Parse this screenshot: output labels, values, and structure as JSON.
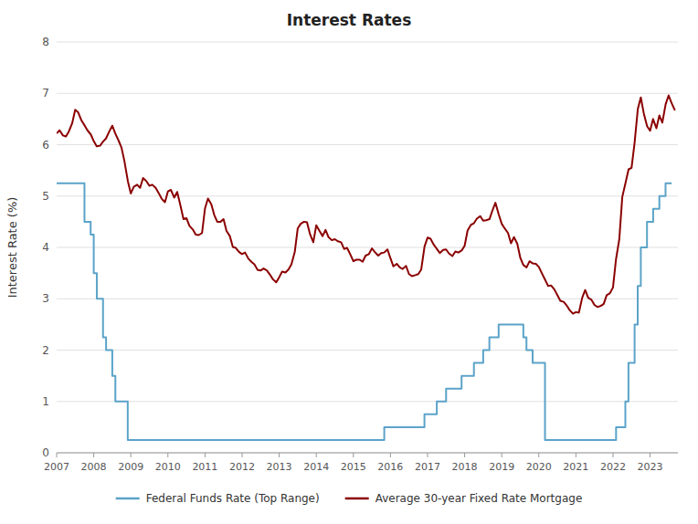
{
  "chart_data": {
    "type": "line",
    "title": "Interest Rates",
    "ylabel": "Interest Rate (%)",
    "xlim": [
      2007,
      2023.75
    ],
    "xticks": [
      2007,
      2008,
      2009,
      2010,
      2011,
      2012,
      2013,
      2014,
      2015,
      2016,
      2017,
      2018,
      2019,
      2020,
      2021,
      2022,
      2023
    ],
    "ylim": [
      0,
      8
    ],
    "yticks": [
      0,
      1,
      2,
      3,
      4,
      5,
      6,
      7,
      8
    ],
    "grid": true,
    "legend": "bottom",
    "series": [
      {
        "name": "Federal Funds Rate (Top Range)",
        "color": "#5ba3c9",
        "x": [
          2007.0,
          2007.75,
          2007.75,
          2007.917,
          2007.917,
          2008.0,
          2008.0,
          2008.083,
          2008.083,
          2008.25,
          2008.25,
          2008.333,
          2008.333,
          2008.5,
          2008.5,
          2008.583,
          2008.583,
          2008.917,
          2008.917,
          2015.833,
          2015.833,
          2016.917,
          2016.917,
          2017.25,
          2017.25,
          2017.5,
          2017.5,
          2017.917,
          2017.917,
          2018.25,
          2018.25,
          2018.5,
          2018.5,
          2018.667,
          2018.667,
          2018.917,
          2018.917,
          2019.583,
          2019.583,
          2019.667,
          2019.667,
          2019.833,
          2019.833,
          2020.167,
          2020.167,
          2022.083,
          2022.083,
          2022.333,
          2022.333,
          2022.417,
          2022.417,
          2022.583,
          2022.583,
          2022.667,
          2022.667,
          2022.75,
          2022.75,
          2022.917,
          2022.917,
          2023.083,
          2023.083,
          2023.25,
          2023.25,
          2023.417,
          2023.417,
          2023.583,
          2023.583
        ],
        "values": [
          5.25,
          5.25,
          4.5,
          4.5,
          4.25,
          4.25,
          3.5,
          3.5,
          3.0,
          3.0,
          2.25,
          2.25,
          2.0,
          2.0,
          1.5,
          1.5,
          1.0,
          1.0,
          0.25,
          0.25,
          0.5,
          0.5,
          0.75,
          0.75,
          1.0,
          1.0,
          1.25,
          1.25,
          1.5,
          1.5,
          1.75,
          1.75,
          2.0,
          2.0,
          2.25,
          2.25,
          2.5,
          2.5,
          2.25,
          2.25,
          2.0,
          2.0,
          1.75,
          1.75,
          0.25,
          0.25,
          0.5,
          0.5,
          1.0,
          1.0,
          1.75,
          1.75,
          2.5,
          2.5,
          3.25,
          3.25,
          4.0,
          4.0,
          4.5,
          4.5,
          4.75,
          4.75,
          5.0,
          5.0,
          5.25,
          5.25,
          5.25
        ]
      },
      {
        "name": "Average 30-year Fixed Rate Mortgage",
        "color": "#8b0000",
        "x": [
          2007.0,
          2007.08,
          2007.17,
          2007.25,
          2007.33,
          2007.42,
          2007.5,
          2007.58,
          2007.67,
          2007.75,
          2007.83,
          2007.92,
          2008.0,
          2008.08,
          2008.17,
          2008.25,
          2008.33,
          2008.42,
          2008.5,
          2008.58,
          2008.67,
          2008.75,
          2008.83,
          2008.92,
          2009.0,
          2009.08,
          2009.17,
          2009.25,
          2009.33,
          2009.42,
          2009.5,
          2009.58,
          2009.67,
          2009.75,
          2009.83,
          2009.92,
          2010.0,
          2010.08,
          2010.17,
          2010.25,
          2010.33,
          2010.42,
          2010.5,
          2010.58,
          2010.67,
          2010.75,
          2010.83,
          2010.92,
          2011.0,
          2011.08,
          2011.17,
          2011.25,
          2011.33,
          2011.42,
          2011.5,
          2011.58,
          2011.67,
          2011.75,
          2011.83,
          2011.92,
          2012.0,
          2012.08,
          2012.17,
          2012.25,
          2012.33,
          2012.42,
          2012.5,
          2012.58,
          2012.67,
          2012.75,
          2012.83,
          2012.92,
          2013.0,
          2013.08,
          2013.17,
          2013.25,
          2013.33,
          2013.42,
          2013.5,
          2013.58,
          2013.67,
          2013.75,
          2013.83,
          2013.92,
          2014.0,
          2014.08,
          2014.17,
          2014.25,
          2014.33,
          2014.42,
          2014.5,
          2014.58,
          2014.67,
          2014.75,
          2014.83,
          2014.92,
          2015.0,
          2015.08,
          2015.17,
          2015.25,
          2015.33,
          2015.42,
          2015.5,
          2015.58,
          2015.67,
          2015.75,
          2015.83,
          2015.92,
          2016.0,
          2016.08,
          2016.17,
          2016.25,
          2016.33,
          2016.42,
          2016.5,
          2016.58,
          2016.67,
          2016.75,
          2016.83,
          2016.92,
          2017.0,
          2017.08,
          2017.17,
          2017.25,
          2017.33,
          2017.42,
          2017.5,
          2017.58,
          2017.67,
          2017.75,
          2017.83,
          2017.92,
          2018.0,
          2018.08,
          2018.17,
          2018.25,
          2018.33,
          2018.42,
          2018.5,
          2018.58,
          2018.67,
          2018.75,
          2018.83,
          2018.92,
          2019.0,
          2019.08,
          2019.17,
          2019.25,
          2019.33,
          2019.42,
          2019.5,
          2019.58,
          2019.67,
          2019.75,
          2019.83,
          2019.92,
          2020.0,
          2020.08,
          2020.17,
          2020.25,
          2020.33,
          2020.42,
          2020.5,
          2020.58,
          2020.67,
          2020.75,
          2020.83,
          2020.92,
          2021.0,
          2021.08,
          2021.17,
          2021.25,
          2021.33,
          2021.42,
          2021.5,
          2021.58,
          2021.67,
          2021.75,
          2021.83,
          2021.92,
          2022.0,
          2022.08,
          2022.17,
          2022.25,
          2022.33,
          2022.42,
          2022.5,
          2022.58,
          2022.67,
          2022.75,
          2022.83,
          2022.92,
          2023.0,
          2023.08,
          2023.17,
          2023.25,
          2023.33,
          2023.42,
          2023.5,
          2023.58,
          2023.67
        ],
        "values": [
          6.22,
          6.28,
          6.18,
          6.16,
          6.26,
          6.42,
          6.68,
          6.63,
          6.47,
          6.38,
          6.28,
          6.2,
          6.07,
          5.97,
          5.98,
          6.06,
          6.12,
          6.26,
          6.37,
          6.22,
          6.08,
          5.94,
          5.67,
          5.29,
          5.05,
          5.18,
          5.22,
          5.16,
          5.35,
          5.29,
          5.2,
          5.22,
          5.16,
          5.06,
          4.95,
          4.88,
          5.09,
          5.12,
          4.97,
          5.08,
          4.84,
          4.55,
          4.57,
          4.42,
          4.35,
          4.25,
          4.24,
          4.28,
          4.76,
          4.95,
          4.84,
          4.63,
          4.5,
          4.5,
          4.55,
          4.32,
          4.22,
          4.01,
          3.99,
          3.91,
          3.87,
          3.9,
          3.78,
          3.72,
          3.67,
          3.56,
          3.55,
          3.59,
          3.55,
          3.47,
          3.38,
          3.32,
          3.42,
          3.53,
          3.51,
          3.57,
          3.67,
          3.91,
          4.37,
          4.46,
          4.5,
          4.49,
          4.26,
          4.1,
          4.43,
          4.33,
          4.22,
          4.34,
          4.2,
          4.14,
          4.16,
          4.12,
          4.1,
          3.97,
          3.99,
          3.86,
          3.73,
          3.76,
          3.76,
          3.72,
          3.84,
          3.87,
          3.98,
          3.91,
          3.84,
          3.89,
          3.9,
          3.96,
          3.79,
          3.63,
          3.68,
          3.61,
          3.58,
          3.64,
          3.48,
          3.44,
          3.46,
          3.48,
          3.57,
          4.02,
          4.19,
          4.17,
          4.05,
          3.97,
          3.89,
          3.95,
          3.96,
          3.88,
          3.83,
          3.92,
          3.9,
          3.94,
          4.03,
          4.33,
          4.44,
          4.47,
          4.56,
          4.61,
          4.52,
          4.53,
          4.55,
          4.72,
          4.87,
          4.64,
          4.46,
          4.37,
          4.28,
          4.08,
          4.2,
          4.07,
          3.8,
          3.66,
          3.61,
          3.73,
          3.69,
          3.68,
          3.62,
          3.5,
          3.37,
          3.25,
          3.26,
          3.18,
          3.07,
          2.96,
          2.94,
          2.87,
          2.78,
          2.71,
          2.74,
          2.73,
          3.02,
          3.17,
          3.02,
          2.98,
          2.88,
          2.84,
          2.86,
          2.9,
          3.07,
          3.11,
          3.22,
          3.76,
          4.16,
          4.98,
          5.23,
          5.52,
          5.55,
          6.02,
          6.7,
          6.92,
          6.61,
          6.36,
          6.27,
          6.5,
          6.32,
          6.57,
          6.43,
          6.79,
          6.96,
          6.81,
          6.67
        ]
      }
    ]
  }
}
